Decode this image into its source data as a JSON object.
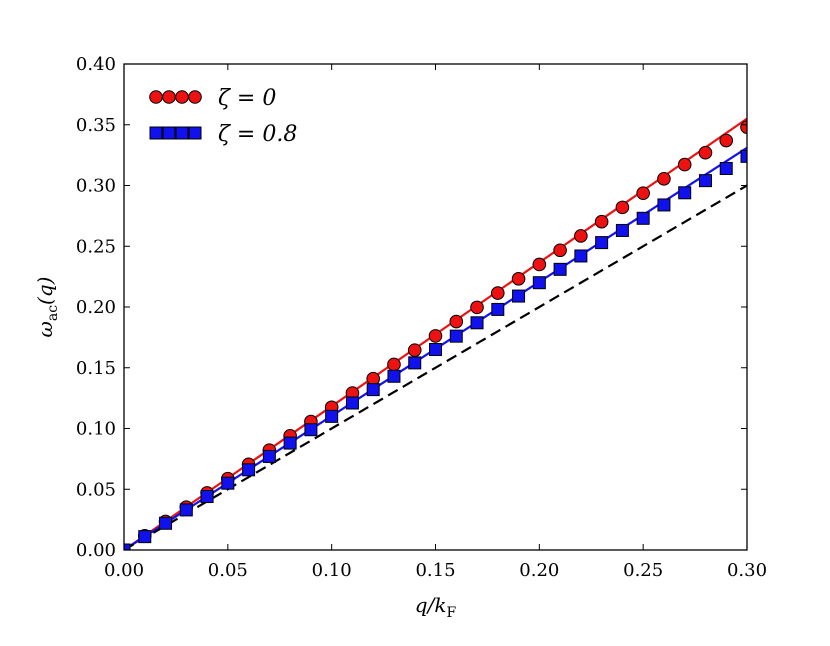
{
  "chart_data": {
    "type": "scatter",
    "xlabel": "q/kF",
    "ylabel": "ωac(q)",
    "xlim": [
      0.0,
      0.3
    ],
    "ylim": [
      0.0,
      0.4
    ],
    "xticks": [
      "0.00",
      "0.05",
      "0.10",
      "0.15",
      "0.20",
      "0.25",
      "0.30"
    ],
    "yticks": [
      "0.00",
      "0.05",
      "0.10",
      "0.15",
      "0.20",
      "0.25",
      "0.30",
      "0.35",
      "0.40"
    ],
    "legend_position": "upper-left",
    "series": [
      {
        "name": "ζ = 0",
        "marker": "circle",
        "color": "#ee1111",
        "x": [
          0.0,
          0.01,
          0.02,
          0.03,
          0.04,
          0.05,
          0.06,
          0.07,
          0.08,
          0.09,
          0.1,
          0.11,
          0.12,
          0.13,
          0.14,
          0.15,
          0.16,
          0.17,
          0.18,
          0.19,
          0.2,
          0.21,
          0.22,
          0.23,
          0.24,
          0.25,
          0.26,
          0.27,
          0.28,
          0.29,
          0.3
        ],
        "y": [
          0.0,
          0.0117,
          0.0235,
          0.0352,
          0.047,
          0.0587,
          0.0705,
          0.0822,
          0.094,
          0.1057,
          0.1175,
          0.1292,
          0.141,
          0.1527,
          0.1645,
          0.1762,
          0.188,
          0.1997,
          0.2115,
          0.2232,
          0.235,
          0.2467,
          0.2585,
          0.2702,
          0.282,
          0.2937,
          0.3055,
          0.3172,
          0.327,
          0.337,
          0.348
        ]
      },
      {
        "name": "ζ = 0.8",
        "marker": "square",
        "color": "#1111ee",
        "x": [
          0.0,
          0.01,
          0.02,
          0.03,
          0.04,
          0.05,
          0.06,
          0.07,
          0.08,
          0.09,
          0.1,
          0.11,
          0.12,
          0.13,
          0.14,
          0.15,
          0.16,
          0.17,
          0.18,
          0.19,
          0.2,
          0.21,
          0.22,
          0.23,
          0.24,
          0.25,
          0.26,
          0.27,
          0.28,
          0.29,
          0.3
        ],
        "y": [
          0.0,
          0.011,
          0.022,
          0.033,
          0.044,
          0.055,
          0.066,
          0.077,
          0.088,
          0.099,
          0.11,
          0.121,
          0.132,
          0.143,
          0.154,
          0.165,
          0.176,
          0.187,
          0.198,
          0.209,
          0.22,
          0.231,
          0.242,
          0.253,
          0.263,
          0.273,
          0.284,
          0.294,
          0.304,
          0.314,
          0.324
        ]
      }
    ],
    "lines": [
      {
        "style": "solid",
        "color": "#ee1111",
        "x": [
          0.0,
          0.3
        ],
        "y": [
          0.0,
          0.355
        ]
      },
      {
        "style": "solid",
        "color": "#1111ee",
        "x": [
          0.0,
          0.3
        ],
        "y": [
          0.0,
          0.331
        ]
      },
      {
        "style": "dashed",
        "color": "#000000",
        "x": [
          0.0,
          0.3
        ],
        "y": [
          0.0,
          0.3
        ]
      }
    ]
  }
}
